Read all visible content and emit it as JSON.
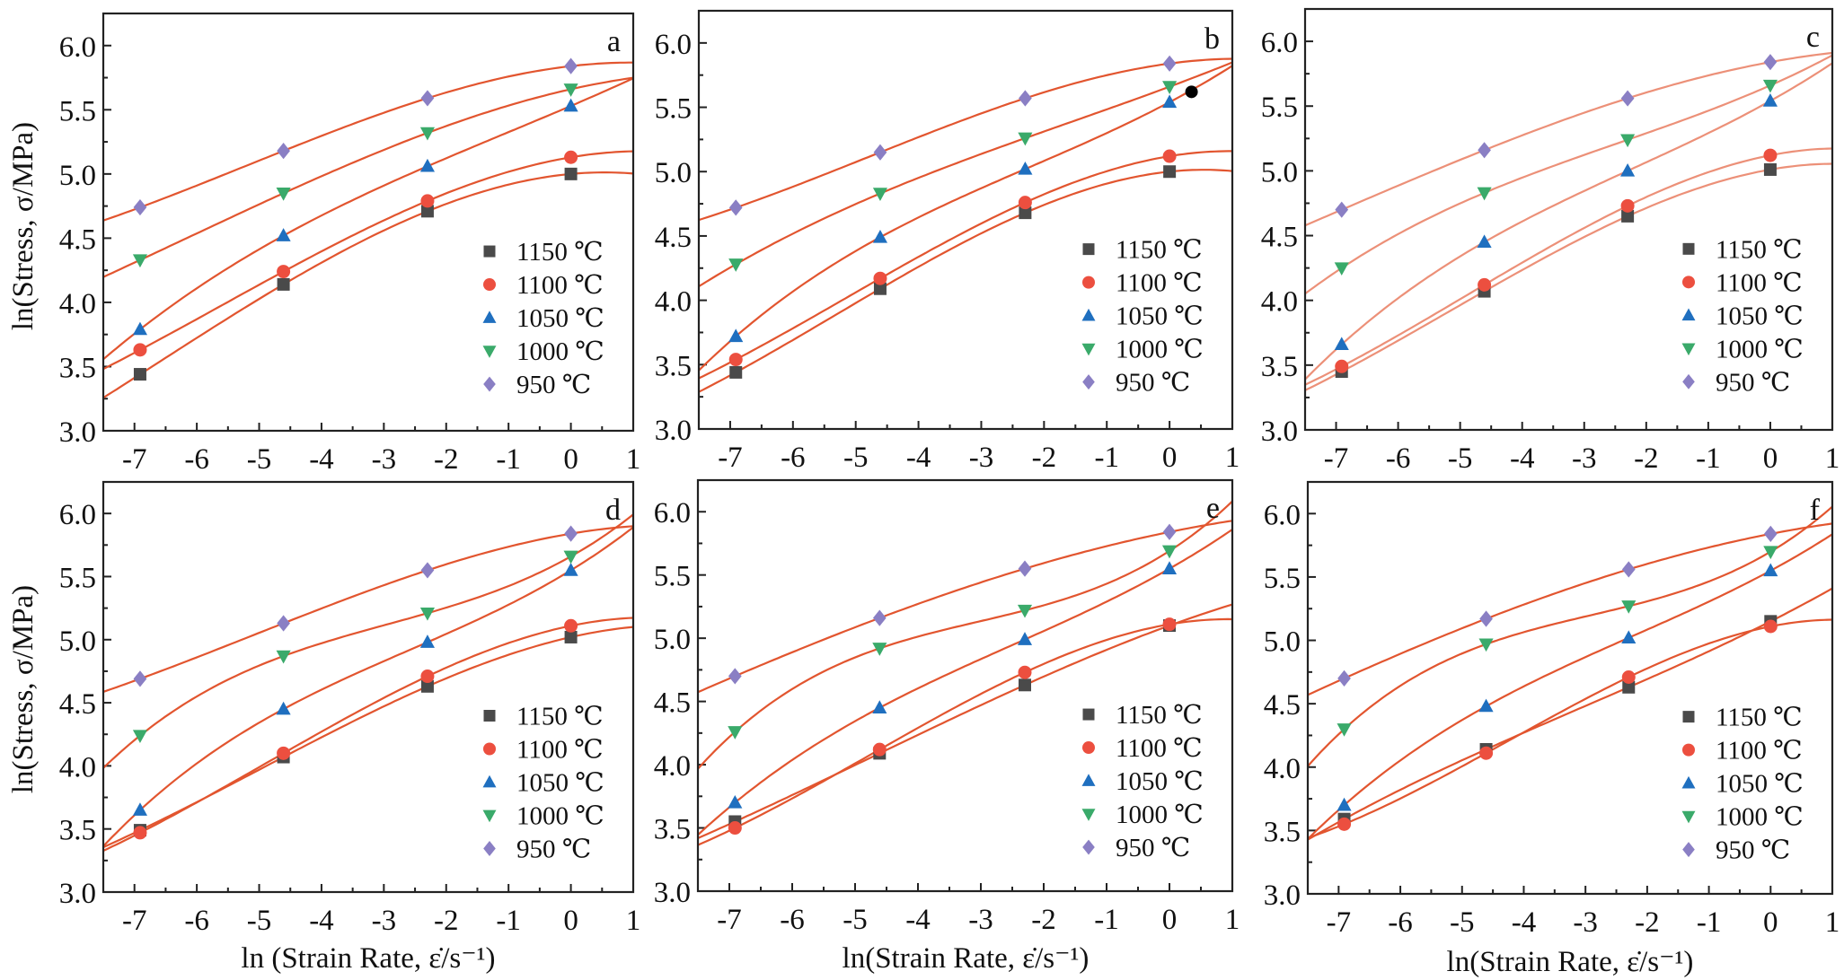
{
  "figure": {
    "ylabel": "ln(Stress, σ/MPa)",
    "xlabel_d": "ln (Strain Rate, ε̇/s⁻¹)",
    "xlabel_e": "ln(Strain Rate, ε̇/s⁻¹)",
    "xlabel_f": "ln(Strain Rate, ε̇/s⁻¹)"
  },
  "chart_data": [
    {
      "panel": "a",
      "type": "scatter",
      "title": "",
      "xlabel": "",
      "ylabel": "ln(Stress, σ/MPa)",
      "xlim": [
        -7.5,
        1
      ],
      "ylim": [
        3.0,
        6.25
      ],
      "xticks": [
        "-7",
        "-6",
        "-5",
        "-4",
        "-3",
        "-2",
        "-1",
        "0",
        "1"
      ],
      "yticks": [
        "3.0",
        "3.5",
        "4.0",
        "4.5",
        "5.0",
        "5.5",
        "6.0"
      ],
      "grid": false,
      "legend_position": "center-right",
      "fit_style": "solid",
      "x": [
        -6.91,
        -4.61,
        -2.3,
        0
      ],
      "series": [
        {
          "name": "1150 ℃",
          "marker": "square",
          "color": "#4a4a4a",
          "values": [
            3.44,
            4.14,
            4.71,
            5.0
          ]
        },
        {
          "name": "1100 ℃",
          "marker": "circle",
          "color": "#ec4f3f",
          "values": [
            3.63,
            4.24,
            4.79,
            5.13
          ]
        },
        {
          "name": "1050 ℃",
          "marker": "triangle-up",
          "color": "#1f6fbf",
          "values": [
            3.79,
            4.52,
            5.06,
            5.53
          ]
        },
        {
          "name": "1000 ℃",
          "marker": "triangle-down",
          "color": "#3aaa6a",
          "values": [
            4.33,
            4.85,
            5.32,
            5.66
          ]
        },
        {
          "name": "950 ℃",
          "marker": "diamond",
          "color": "#8a7fc4",
          "values": [
            4.74,
            5.18,
            5.59,
            5.84
          ]
        }
      ]
    },
    {
      "panel": "b",
      "type": "scatter",
      "title": "",
      "xlabel": "",
      "ylabel": "",
      "xlim": [
        -7.5,
        1
      ],
      "ylim": [
        3.0,
        6.25
      ],
      "xticks": [
        "-7",
        "-6",
        "-5",
        "-4",
        "-3",
        "-2",
        "-1",
        "0",
        "1"
      ],
      "yticks": [
        "3.0",
        "3.5",
        "4.0",
        "4.5",
        "5.0",
        "5.5",
        "6.0"
      ],
      "grid": false,
      "legend_position": "center-right",
      "fit_style": "solid",
      "annotation": {
        "type": "black-dot",
        "x": 0.35,
        "y": 5.62
      },
      "x": [
        -6.91,
        -4.61,
        -2.3,
        0
      ],
      "series": [
        {
          "name": "1150 ℃",
          "marker": "square",
          "color": "#4a4a4a",
          "values": [
            3.44,
            4.09,
            4.68,
            5.0
          ]
        },
        {
          "name": "1100 ℃",
          "marker": "circle",
          "color": "#ec4f3f",
          "values": [
            3.54,
            4.17,
            4.76,
            5.12
          ]
        },
        {
          "name": "1050 ℃",
          "marker": "triangle-up",
          "color": "#1f6fbf",
          "values": [
            3.72,
            4.49,
            5.02,
            5.54
          ]
        },
        {
          "name": "1000 ℃",
          "marker": "triangle-down",
          "color": "#3aaa6a",
          "values": [
            4.28,
            4.83,
            5.26,
            5.66
          ]
        },
        {
          "name": "950 ℃",
          "marker": "diamond",
          "color": "#8a7fc4",
          "values": [
            4.72,
            5.15,
            5.57,
            5.84
          ]
        }
      ]
    },
    {
      "panel": "c",
      "type": "scatter",
      "title": "",
      "xlabel": "",
      "ylabel": "",
      "xlim": [
        -7.5,
        1
      ],
      "ylim": [
        3.0,
        6.25
      ],
      "xticks": [
        "-7",
        "-6",
        "-5",
        "-4",
        "-3",
        "-2",
        "-1",
        "0",
        "1"
      ],
      "yticks": [
        "3.0",
        "3.5",
        "4.0",
        "4.5",
        "5.0",
        "5.5",
        "6.0"
      ],
      "grid": false,
      "legend_position": "center-right",
      "fit_style": "thin",
      "x": [
        -6.91,
        -4.61,
        -2.3,
        0
      ],
      "series": [
        {
          "name": "1150 ℃",
          "marker": "square",
          "color": "#4a4a4a",
          "values": [
            3.45,
            4.07,
            4.65,
            5.01
          ]
        },
        {
          "name": "1100 ℃",
          "marker": "circle",
          "color": "#ec4f3f",
          "values": [
            3.49,
            4.12,
            4.73,
            5.12
          ]
        },
        {
          "name": "1050 ℃",
          "marker": "triangle-up",
          "color": "#1f6fbf",
          "values": [
            3.66,
            4.45,
            5.0,
            5.54
          ]
        },
        {
          "name": "1000 ℃",
          "marker": "triangle-down",
          "color": "#3aaa6a",
          "values": [
            4.25,
            4.83,
            5.24,
            5.66
          ]
        },
        {
          "name": "950 ℃",
          "marker": "diamond",
          "color": "#8a7fc4",
          "values": [
            4.7,
            5.16,
            5.56,
            5.84
          ]
        }
      ]
    },
    {
      "panel": "d",
      "type": "scatter",
      "title": "",
      "xlabel": "ln (Strain Rate, ε̇/s⁻¹)",
      "ylabel": "ln(Stress, σ/MPa)",
      "xlim": [
        -7.5,
        1
      ],
      "ylim": [
        3.0,
        6.25
      ],
      "xticks": [
        "-7",
        "-6",
        "-5",
        "-4",
        "-3",
        "-2",
        "-1",
        "0",
        "1"
      ],
      "yticks": [
        "3.0",
        "3.5",
        "4.0",
        "4.5",
        "5.0",
        "5.5",
        "6.0"
      ],
      "grid": false,
      "legend_position": "center-right",
      "fit_style": "solid",
      "x": [
        -6.91,
        -4.61,
        -2.3,
        0
      ],
      "series": [
        {
          "name": "1150 ℃",
          "marker": "square",
          "color": "#4a4a4a",
          "values": [
            3.49,
            4.07,
            4.63,
            5.02
          ]
        },
        {
          "name": "1100 ℃",
          "marker": "circle",
          "color": "#ec4f3f",
          "values": [
            3.47,
            4.1,
            4.71,
            5.11
          ]
        },
        {
          "name": "1050 ℃",
          "marker": "triangle-up",
          "color": "#1f6fbf",
          "values": [
            3.65,
            4.45,
            4.98,
            5.55
          ]
        },
        {
          "name": "1000 ℃",
          "marker": "triangle-down",
          "color": "#3aaa6a",
          "values": [
            4.24,
            4.87,
            5.21,
            5.66
          ]
        },
        {
          "name": "950 ℃",
          "marker": "diamond",
          "color": "#8a7fc4",
          "values": [
            4.69,
            5.13,
            5.55,
            5.84
          ]
        }
      ]
    },
    {
      "panel": "e",
      "type": "scatter",
      "title": "",
      "xlabel": "ln(Strain Rate, ε̇/s⁻¹)",
      "ylabel": "",
      "xlim": [
        -7.5,
        1
      ],
      "ylim": [
        3.0,
        6.25
      ],
      "xticks": [
        "-7",
        "-6",
        "-5",
        "-4",
        "-3",
        "-2",
        "-1",
        "0",
        "1"
      ],
      "yticks": [
        "3.0",
        "3.5",
        "4.0",
        "4.5",
        "5.0",
        "5.5",
        "6.0"
      ],
      "grid": false,
      "legend_position": "center-right",
      "fit_style": "solid",
      "x": [
        -6.91,
        -4.61,
        -2.3,
        0
      ],
      "series": [
        {
          "name": "1150 ℃",
          "marker": "square",
          "color": "#4a4a4a",
          "values": [
            3.55,
            4.09,
            4.63,
            5.1
          ]
        },
        {
          "name": "1100 ℃",
          "marker": "circle",
          "color": "#ec4f3f",
          "values": [
            3.5,
            4.12,
            4.73,
            5.11
          ]
        },
        {
          "name": "1050 ℃",
          "marker": "triangle-up",
          "color": "#1f6fbf",
          "values": [
            3.7,
            4.45,
            4.99,
            5.55
          ]
        },
        {
          "name": "1000 ℃",
          "marker": "triangle-down",
          "color": "#3aaa6a",
          "values": [
            4.26,
            4.92,
            5.22,
            5.69
          ]
        },
        {
          "name": "950 ℃",
          "marker": "diamond",
          "color": "#8a7fc4",
          "values": [
            4.7,
            5.16,
            5.55,
            5.84
          ]
        }
      ]
    },
    {
      "panel": "f",
      "type": "scatter",
      "title": "",
      "xlabel": "ln(Strain Rate, ε̇/s⁻¹)",
      "ylabel": "",
      "xlim": [
        -7.5,
        1
      ],
      "ylim": [
        3.0,
        6.25
      ],
      "xticks": [
        "-7",
        "-6",
        "-5",
        "-4",
        "-3",
        "-2",
        "-1",
        "0",
        "1"
      ],
      "yticks": [
        "3.0",
        "3.5",
        "4.0",
        "4.5",
        "5.0",
        "5.5",
        "6.0"
      ],
      "grid": false,
      "legend_position": "center-right",
      "fit_style": "solid",
      "x": [
        -6.91,
        -4.61,
        -2.3,
        0
      ],
      "series": [
        {
          "name": "1150 ℃",
          "marker": "square",
          "color": "#4a4a4a",
          "values": [
            3.59,
            4.14,
            4.63,
            5.15
          ]
        },
        {
          "name": "1100 ℃",
          "marker": "circle",
          "color": "#ec4f3f",
          "values": [
            3.55,
            4.11,
            4.71,
            5.11
          ]
        },
        {
          "name": "1050 ℃",
          "marker": "triangle-up",
          "color": "#1f6fbf",
          "values": [
            3.7,
            4.48,
            5.02,
            5.55
          ]
        },
        {
          "name": "1000 ℃",
          "marker": "triangle-down",
          "color": "#3aaa6a",
          "values": [
            4.3,
            4.97,
            5.27,
            5.7
          ]
        },
        {
          "name": "950 ℃",
          "marker": "diamond",
          "color": "#8a7fc4",
          "values": [
            4.7,
            5.17,
            5.56,
            5.84
          ]
        }
      ]
    }
  ],
  "fit_color": "#e2552f"
}
